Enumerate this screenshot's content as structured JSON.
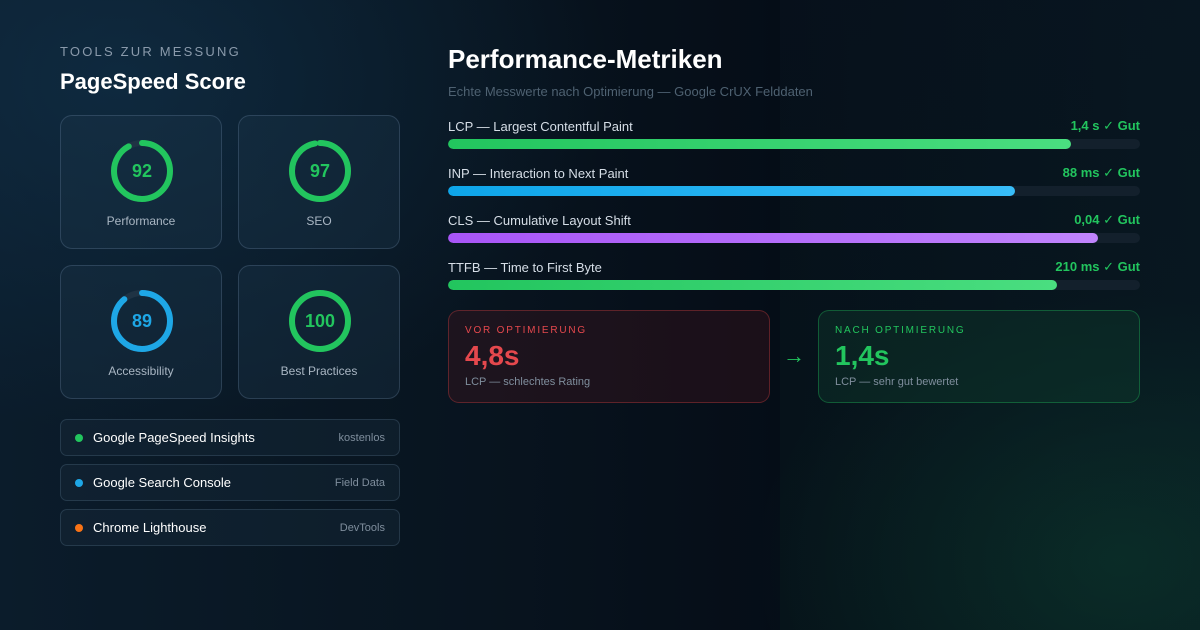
{
  "left": {
    "eyebrow": "TOOLS ZUR MESSUNG",
    "title": "PageSpeed Score",
    "scores": [
      {
        "value": "92",
        "label": "Performance",
        "fraction": 0.92,
        "color": "#22c55e"
      },
      {
        "value": "97",
        "label": "SEO",
        "fraction": 0.97,
        "color": "#22c55e"
      },
      {
        "value": "89",
        "label": "Accessibility",
        "fraction": 0.89,
        "color": "#1ea7e6"
      },
      {
        "value": "100",
        "label": "Best Practices",
        "fraction": 1.0,
        "color": "#22c55e"
      }
    ],
    "tools": [
      {
        "name": "Google PageSpeed Insights",
        "tag": "kostenlos",
        "dot_color": "#22c55e"
      },
      {
        "name": "Google Search Console",
        "tag": "Field Data",
        "dot_color": "#1ea7e6"
      },
      {
        "name": "Chrome Lighthouse",
        "tag": "DevTools",
        "dot_color": "#f97316"
      }
    ]
  },
  "right": {
    "title": "Performance-Metriken",
    "subtitle": "Echte Messwerte nach Optimierung — Google CrUX Felddaten",
    "metrics": [
      {
        "label": "LCP — Largest Contentful Paint",
        "value": "1,4 s ✓ Gut",
        "fill": 0.9,
        "color_from": "#22c55e",
        "color_to": "#4ade80"
      },
      {
        "label": "INP — Interaction to Next Paint",
        "value": "88 ms ✓ Gut",
        "fill": 0.82,
        "color_from": "#0ea5e9",
        "color_to": "#38bdf8"
      },
      {
        "label": "CLS — Cumulative Layout Shift",
        "value": "0,04 ✓ Gut",
        "fill": 0.94,
        "color_from": "#a855f7",
        "color_to": "#c084fc"
      },
      {
        "label": "TTFB — Time to First Byte",
        "value": "210 ms ✓ Gut",
        "fill": 0.88,
        "color_from": "#22c55e",
        "color_to": "#4ade80"
      }
    ],
    "before": {
      "eyebrow": "VOR OPTIMIERUNG",
      "value": "4,8s",
      "sub": "LCP — schlechtes Rating",
      "color": "#e5484d"
    },
    "after": {
      "eyebrow": "NACH OPTIMIERUNG",
      "value": "1,4s",
      "sub": "LCP — sehr gut bewertet",
      "color": "#22c55e"
    },
    "arrow_icon": "arrow-right-icon"
  }
}
